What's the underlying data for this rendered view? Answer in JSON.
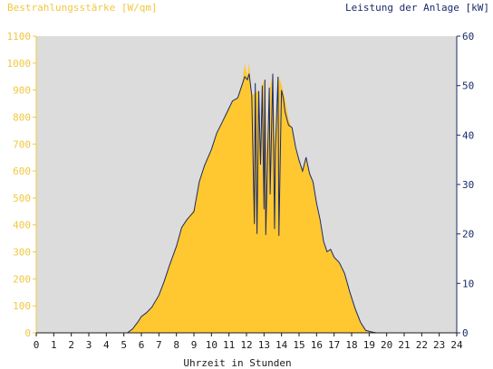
{
  "header": {
    "left_axis_title": "Bestrahlungsstärke [W/qm]",
    "right_axis_title": "Leistung der Anlage [kW]"
  },
  "chart_data": {
    "type": "area",
    "xlabel": "Uhrzeit in Stunden",
    "ylabel": "Bestrahlungsstärke [W/qm]",
    "y2label": "Leistung der Anlage [kW]",
    "x_ticks": [
      "0",
      "1",
      "2",
      "3",
      "4",
      "5",
      "6",
      "7",
      "8",
      "9",
      "10",
      "11",
      "12",
      "13",
      "14",
      "15",
      "16",
      "17",
      "18",
      "19",
      "20",
      "21",
      "22",
      "23",
      "24"
    ],
    "xlim": [
      0,
      24
    ],
    "ylim": [
      0,
      1100
    ],
    "y_ticks": [
      0,
      100,
      200,
      300,
      400,
      500,
      600,
      700,
      800,
      900,
      1000,
      1100
    ],
    "y2lim": [
      0,
      60
    ],
    "y2_ticks": [
      0,
      10,
      20,
      30,
      40,
      50,
      60
    ],
    "grid": false,
    "colors": {
      "irradiance": "#ffc830",
      "power": "#1a2a6c",
      "left_axis": "#f0c840",
      "right_axis": "#1a2a6c",
      "plot_bg": "#dcdcdc"
    },
    "series": [
      {
        "axis": "left",
        "x": [
          0,
          5.2,
          5.5,
          5.8,
          6.0,
          6.3,
          6.6,
          7.0,
          7.3,
          7.6,
          8.0,
          8.3,
          8.6,
          9.0,
          9.3,
          9.6,
          10.0,
          10.3,
          10.6,
          10.9,
          11.2,
          11.5,
          11.75,
          11.9,
          12.05,
          12.15,
          12.3,
          12.5,
          12.7,
          12.8,
          12.9,
          13.05,
          13.2,
          13.35,
          13.5,
          13.65,
          13.85,
          14.0,
          14.2,
          14.4,
          14.6,
          14.8,
          15.0,
          15.2,
          15.4,
          15.6,
          15.8,
          16.0,
          16.2,
          16.4,
          16.6,
          16.8,
          17.0,
          17.3,
          17.6,
          17.9,
          18.2,
          18.5,
          18.8,
          19.1,
          19.4,
          19.7,
          20.0,
          24
        ],
        "values": [
          0,
          0,
          15,
          40,
          60,
          75,
          95,
          140,
          190,
          250,
          320,
          390,
          420,
          460,
          560,
          620,
          680,
          740,
          780,
          820,
          860,
          870,
          920,
          1000,
          950,
          1000,
          880,
          890,
          900,
          580,
          920,
          940,
          640,
          910,
          960,
          680,
          950,
          920,
          870,
          790,
          760,
          690,
          640,
          600,
          650,
          590,
          560,
          480,
          420,
          340,
          300,
          310,
          280,
          260,
          220,
          150,
          90,
          40,
          10,
          3,
          0,
          0,
          0,
          0
        ]
      },
      {
        "axis": "right",
        "x": [
          0,
          5.2,
          5.5,
          5.8,
          6.0,
          6.3,
          6.6,
          7.0,
          7.3,
          7.6,
          8.0,
          8.3,
          8.6,
          9.0,
          9.3,
          9.6,
          10.0,
          10.3,
          10.6,
          10.9,
          11.2,
          11.5,
          11.75,
          11.9,
          12.05,
          12.15,
          12.3,
          12.45,
          12.5,
          12.6,
          12.7,
          12.8,
          12.9,
          13.0,
          13.05,
          13.1,
          13.2,
          13.3,
          13.35,
          13.5,
          13.6,
          13.65,
          13.8,
          13.85,
          13.95,
          14.0,
          14.1,
          14.2,
          14.4,
          14.6,
          14.8,
          15.0,
          15.2,
          15.4,
          15.6,
          15.8,
          16.0,
          16.2,
          16.4,
          16.6,
          16.8,
          17.0,
          17.3,
          17.6,
          17.9,
          18.2,
          18.5,
          18.8,
          19.1,
          19.4,
          19.7,
          20.0,
          24
        ],
        "values": [
          0,
          0,
          0.8,
          2.2,
          3.3,
          4.1,
          5.2,
          7.6,
          10.4,
          13.6,
          17.5,
          21.3,
          22.9,
          24.5,
          30.5,
          33.8,
          37.1,
          40.4,
          42.5,
          44.7,
          46.9,
          47.5,
          50.2,
          51.8,
          51.2,
          52.4,
          48.0,
          22.0,
          50.5,
          20.0,
          48.9,
          34.0,
          50.0,
          25.0,
          51.2,
          19.8,
          34.9,
          49.6,
          28.0,
          52.4,
          21.0,
          37.1,
          51.8,
          19.6,
          40.0,
          49.1,
          47.5,
          44.7,
          42.0,
          41.5,
          37.6,
          34.9,
          32.7,
          35.5,
          32.2,
          30.5,
          26.2,
          22.9,
          18.5,
          16.4,
          16.9,
          15.3,
          14.2,
          12.0,
          8.2,
          4.9,
          2.2,
          0.5,
          0.2,
          0,
          0,
          0,
          0
        ]
      }
    ]
  }
}
